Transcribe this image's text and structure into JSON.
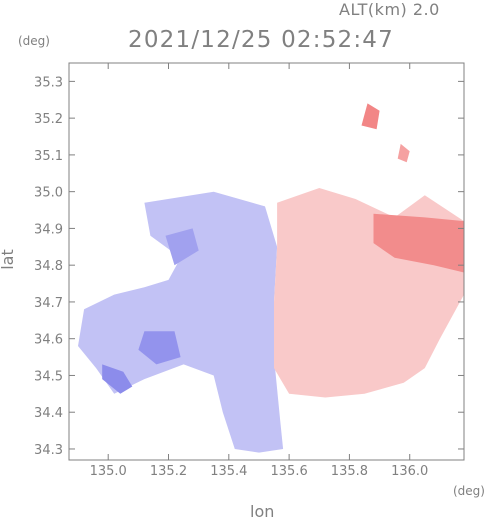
{
  "header": {
    "altitude": "ALT(km) 2.0",
    "timestamp": "2021/12/25 02:52:47"
  },
  "units": {
    "x": "(deg)",
    "y": "(deg)"
  },
  "chart_data": {
    "type": "heatmap",
    "title": "",
    "xlabel": "lon",
    "ylabel": "lat",
    "xlim": [
      134.87,
      136.18
    ],
    "ylim": [
      34.27,
      35.35
    ],
    "x_ticks": [
      135.0,
      135.2,
      135.4,
      135.6,
      135.8,
      136.0
    ],
    "x_tick_labels": [
      "135.0",
      "135.2",
      "135.4",
      "135.6",
      "135.8",
      "136.0"
    ],
    "y_ticks": [
      34.3,
      34.4,
      34.5,
      34.6,
      34.7,
      34.8,
      34.9,
      35.0,
      35.1,
      35.2,
      35.3
    ],
    "y_tick_labels": [
      "34.3",
      "34.4",
      "34.5",
      "34.6",
      "34.7",
      "34.8",
      "34.9",
      "35.0",
      "35.1",
      "35.2",
      "35.3"
    ],
    "colors": {
      "negative": "#7878e8",
      "positive": "#f07878",
      "neutral": "#ffffff",
      "axis": "#808080"
    },
    "regions": [
      {
        "name": "west",
        "sign": "negative",
        "polygon": [
          [
            135.12,
            34.97
          ],
          [
            135.35,
            35.0
          ],
          [
            135.52,
            34.96
          ],
          [
            135.56,
            34.85
          ],
          [
            135.55,
            34.7
          ],
          [
            135.55,
            34.55
          ],
          [
            135.57,
            34.38
          ],
          [
            135.58,
            34.3
          ],
          [
            135.5,
            34.29
          ],
          [
            135.42,
            34.3
          ],
          [
            135.38,
            34.4
          ],
          [
            135.35,
            34.5
          ],
          [
            135.25,
            34.53
          ],
          [
            135.12,
            34.49
          ],
          [
            135.02,
            34.45
          ],
          [
            134.96,
            34.52
          ],
          [
            134.9,
            34.58
          ],
          [
            134.92,
            34.68
          ],
          [
            135.02,
            34.72
          ],
          [
            135.12,
            34.74
          ],
          [
            135.2,
            34.76
          ],
          [
            135.24,
            34.82
          ],
          [
            135.14,
            34.88
          ]
        ],
        "intensity": 0.45
      },
      {
        "name": "west-dark-1",
        "sign": "negative",
        "polygon": [
          [
            134.98,
            34.53
          ],
          [
            135.05,
            34.51
          ],
          [
            135.08,
            34.47
          ],
          [
            135.04,
            34.45
          ],
          [
            134.98,
            34.49
          ]
        ],
        "intensity": 0.85
      },
      {
        "name": "west-dark-2",
        "sign": "negative",
        "polygon": [
          [
            135.12,
            34.62
          ],
          [
            135.22,
            34.62
          ],
          [
            135.24,
            34.55
          ],
          [
            135.16,
            34.53
          ],
          [
            135.1,
            34.57
          ]
        ],
        "intensity": 0.8
      },
      {
        "name": "west-dark-3",
        "sign": "negative",
        "polygon": [
          [
            135.19,
            34.88
          ],
          [
            135.28,
            34.9
          ],
          [
            135.3,
            34.84
          ],
          [
            135.22,
            34.8
          ]
        ],
        "intensity": 0.7
      },
      {
        "name": "east",
        "sign": "positive",
        "polygon": [
          [
            135.56,
            34.97
          ],
          [
            135.7,
            35.01
          ],
          [
            135.82,
            34.98
          ],
          [
            135.95,
            34.93
          ],
          [
            136.05,
            34.99
          ],
          [
            136.18,
            34.92
          ],
          [
            136.18,
            34.72
          ],
          [
            136.1,
            34.6
          ],
          [
            136.05,
            34.52
          ],
          [
            135.98,
            34.48
          ],
          [
            135.85,
            34.45
          ],
          [
            135.72,
            34.44
          ],
          [
            135.6,
            34.45
          ],
          [
            135.55,
            34.52
          ],
          [
            135.55,
            34.7
          ],
          [
            135.56,
            34.85
          ]
        ],
        "intensity": 0.4
      },
      {
        "name": "east-strong",
        "sign": "positive",
        "polygon": [
          [
            135.88,
            34.94
          ],
          [
            136.05,
            34.93
          ],
          [
            136.18,
            34.92
          ],
          [
            136.18,
            34.78
          ],
          [
            136.08,
            34.8
          ],
          [
            135.95,
            34.82
          ],
          [
            135.88,
            34.86
          ]
        ],
        "intensity": 0.85
      },
      {
        "name": "north-patch",
        "sign": "positive",
        "polygon": [
          [
            135.86,
            35.24
          ],
          [
            135.9,
            35.22
          ],
          [
            135.89,
            35.17
          ],
          [
            135.84,
            35.18
          ]
        ],
        "intensity": 0.9
      },
      {
        "name": "north-patch-2",
        "sign": "positive",
        "polygon": [
          [
            135.97,
            35.13
          ],
          [
            136.0,
            35.11
          ],
          [
            135.99,
            35.08
          ],
          [
            135.96,
            35.09
          ]
        ],
        "intensity": 0.7
      }
    ]
  }
}
